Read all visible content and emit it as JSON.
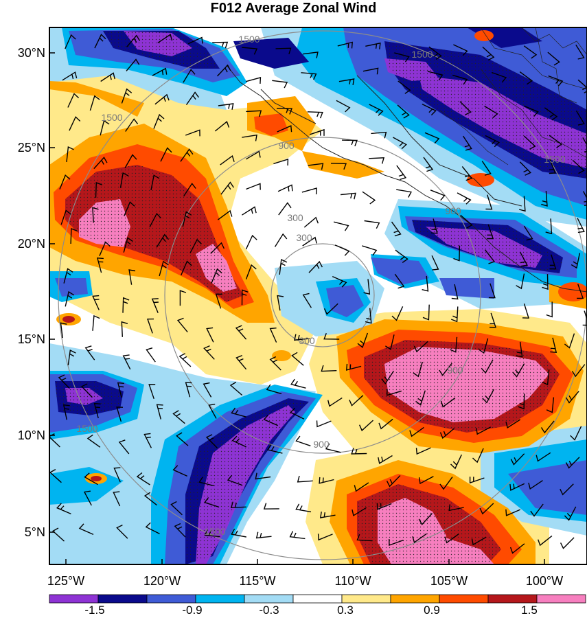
{
  "title": "F012 Average Zonal Wind",
  "map": {
    "latitude_labels": [
      "30°N",
      "25°N",
      "20°N",
      "15°N",
      "10°N",
      "5°N"
    ],
    "longitude_labels": [
      "125°W",
      "120°W",
      "115°W",
      "110°W",
      "105°W",
      "100°W"
    ],
    "range_ring_labels": [
      "300",
      "300",
      "300",
      "900",
      "900",
      "900",
      "900",
      "1500",
      "1500",
      "1500",
      "1500",
      "1500",
      "1500"
    ],
    "shading_colors": [
      "#8e33d4",
      "#0a0a8c",
      "#3f5bd6",
      "#00b4f0",
      "#a3dcf5",
      "#ffffff",
      "#ffe98a",
      "#ffa500",
      "#ff4b00",
      "#b5171b",
      "#f77fbf"
    ],
    "elements": [
      "wind-barbs",
      "coastline",
      "state-borders",
      "stipple-significance"
    ]
  },
  "colorbar": {
    "colors": [
      "#8e33d4",
      "#0a0a8c",
      "#3f5bd6",
      "#00b4f0",
      "#a3dcf5",
      "#ffffff",
      "#ffe98a",
      "#ffa500",
      "#ff4b00",
      "#b5171b",
      "#f77fbf"
    ],
    "labels": [
      "-1.5",
      "-0.9",
      "-0.3",
      "0.3",
      "0.9",
      "1.5"
    ]
  }
}
